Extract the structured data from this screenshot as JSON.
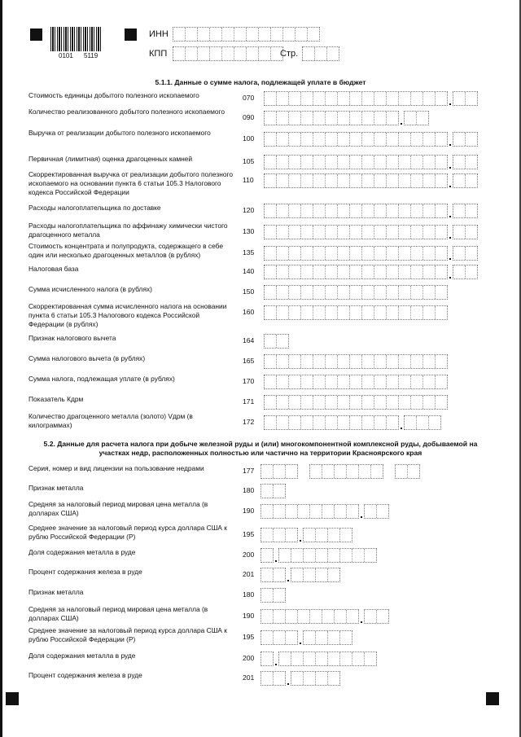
{
  "header": {
    "barcode_number_1": "0101",
    "barcode_number_2": "5119",
    "inn_label": "ИНН",
    "kpp_label": "КПП",
    "page_label": "Стр."
  },
  "section_511": {
    "title": "5.1.1. Данные о сумме налога, подлежащей уплате в бюджет",
    "rows": [
      {
        "label": "Стоимость единицы добытого полезного ископаемого",
        "code": "070"
      },
      {
        "label": "Количество реализованного добытого полезного ископаемого",
        "code": "090"
      },
      {
        "label": "Выручка от реализации добытого полезного ископаемого",
        "code": "100"
      },
      {
        "label": "Первичная (лимитная) оценка драгоценных камней",
        "code": "105"
      },
      {
        "label": "Скорректированная выручка от реализации добытого полезного ископаемого на основании пункта 6 статьи 105.3 Налогового кодекса Российской Федерации",
        "code": "110"
      },
      {
        "label": "Расходы налогоплательщика по доставке",
        "code": "120"
      },
      {
        "label": "Расходы налогоплательщика по аффинажу химически чистого драгоценного металла",
        "code": "130"
      },
      {
        "label": "Стоимость концентрата и полупродукта, содержащего в себе один или несколько драгоценных металлов (в рублях)",
        "code": "135"
      },
      {
        "label": "Налоговая база",
        "code": "140"
      },
      {
        "label": "Сумма исчисленного налога (в рублях)",
        "code": "150"
      },
      {
        "label": "Скорректированная сумма исчисленного налога на основании пункта 6 статьи 105.3 Налогового кодекса Российской Федерации (в рублях)",
        "code": "160"
      },
      {
        "label": "Признак налогового вычета",
        "code": "164"
      },
      {
        "label": "Сумма налогового вычета (в рублях)",
        "code": "165"
      },
      {
        "label": "Сумма налога, подлежащая уплате (в рублях)",
        "code": "170"
      },
      {
        "label": "Показатель Кдрм",
        "code": "171"
      },
      {
        "label": "Количество драгоценного металла (золото) Vдрм (в килограммах)",
        "code": "172"
      }
    ]
  },
  "section_52": {
    "title": "5.2. Данные для расчета налога при добыче железной руды и (или) многокомпонентной комплексной руды, добываемой на участках недр, расположенных полностью или частично на территории Красноярского края",
    "rows": [
      {
        "label": "Серия, номер и вид лицензии на пользование недрами",
        "code": "177"
      },
      {
        "label": "Признак металла",
        "code": "180"
      },
      {
        "label": "Средняя за налоговый период мировая цена металла (в долларах США)",
        "code": "190"
      },
      {
        "label": "Среднее значение за налоговый период курса доллара США к рублю Российской Федерации (Р)",
        "code": "195"
      },
      {
        "label": "Доля содержания металла в руде",
        "code": "200"
      },
      {
        "label": "Процент содержания железа в руде",
        "code": "201"
      },
      {
        "label": "Признак металла",
        "code": "180"
      },
      {
        "label": "Средняя за налоговый период мировая цена металла (в долларах США)",
        "code": "190"
      },
      {
        "label": "Среднее значение за налоговый период курса доллара США к рублю Российской Федерации (Р)",
        "code": "195"
      },
      {
        "label": "Доля содержания металла в руде",
        "code": "200"
      },
      {
        "label": "Процент содержания железа в руде",
        "code": "201"
      }
    ]
  }
}
